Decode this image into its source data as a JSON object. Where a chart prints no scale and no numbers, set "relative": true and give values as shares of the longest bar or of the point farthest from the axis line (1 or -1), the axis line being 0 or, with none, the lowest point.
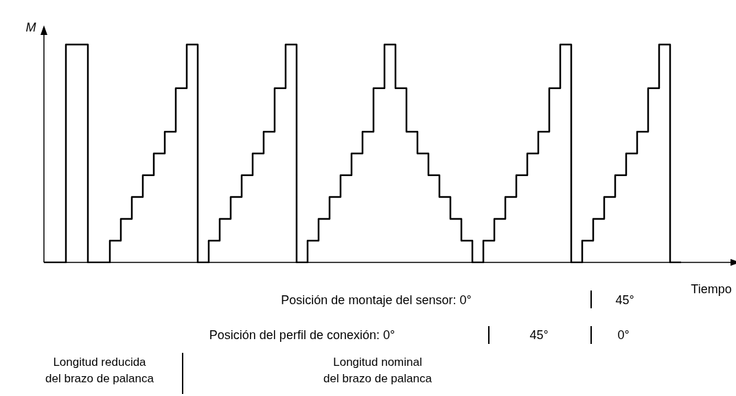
{
  "chart_data": {
    "type": "step",
    "relative": true,
    "xlabel": "Tiempo",
    "ylabel": "M",
    "categories": [
      null,
      null,
      null,
      null,
      null,
      null,
      null,
      null,
      null,
      null,
      null,
      null,
      null,
      null,
      null,
      null,
      null,
      null,
      null,
      null,
      null,
      null,
      null,
      null,
      null,
      null,
      null,
      null,
      null,
      null,
      null,
      null,
      null,
      null,
      null,
      null,
      null,
      null,
      null,
      null,
      null,
      null,
      null,
      null,
      null,
      null,
      null,
      null,
      null,
      null,
      null,
      null,
      null,
      null,
      null,
      null,
      null,
      null,
      null,
      null,
      null,
      null,
      null
    ],
    "series": [
      {
        "color": "#000000",
        "values": [
          0,
          0,
          0,
          1,
          1,
          0,
          0,
          0.1,
          0.2,
          0.3,
          0.4,
          0.5,
          0.6,
          0.8,
          1,
          0,
          0.1,
          0.2,
          0.3,
          0.4,
          0.5,
          0.6,
          0.8,
          1,
          0,
          0.1,
          0.2,
          0.3,
          0.4,
          0.5,
          0.6,
          0.8,
          1,
          0.8,
          0.6,
          0.5,
          0.4,
          0.3,
          0.2,
          0.1,
          0,
          0.1,
          0.2,
          0.3,
          0.4,
          0.5,
          0.6,
          0.8,
          1,
          0,
          0.1,
          0.2,
          0.3,
          0.4,
          0.5,
          0.6,
          0.8,
          1,
          0,
          null,
          null,
          null,
          null
        ]
      }
    ],
    "annotations": [
      "Posición de montaje del sensor: 0°",
      "45°",
      "Posición del perfil de conexión: 0°",
      "45°",
      "0°",
      "Longitud reducida\ndel brazo de palanca",
      "Longitud nominal\ndel brazo de palanca"
    ],
    "grid": false
  }
}
